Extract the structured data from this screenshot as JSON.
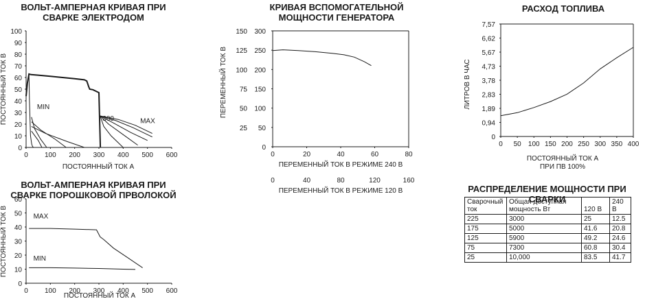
{
  "colors": {
    "ink": "#1a1a1a",
    "background": "#ffffff"
  },
  "chart_data": [
    {
      "type": "line",
      "title": "ВОЛЬТ-АМПЕРНАЯ КРИВАЯ ПРИ\nСВАРКЕ ЭЛЕКТРОДОМ",
      "xlabel": "ПОСТОЯННЫЙ ТОК А",
      "ylabel": "ПОСТОЯННЫЙ ТОК В",
      "xlim": [
        0,
        600
      ],
      "ylim": [
        0,
        100
      ],
      "xticks": [
        0,
        100,
        200,
        300,
        400,
        500,
        600
      ],
      "yticks": [
        0,
        10,
        20,
        30,
        40,
        50,
        60,
        70,
        80,
        90,
        100
      ],
      "grid": false,
      "annotations": [
        {
          "text": "MIN",
          "x": 45,
          "y": 33
        },
        {
          "text": "300",
          "x": 315,
          "y": 23
        },
        {
          "text": "MAX",
          "x": 470,
          "y": 21
        }
      ],
      "series": [
        {
          "x": [
            0,
            5,
            12,
            20,
            50,
            100,
            150,
            200,
            240,
            250,
            258,
            262,
            275,
            290,
            300,
            306
          ],
          "y": [
            44,
            55,
            63,
            62.5,
            62,
            61,
            60,
            59,
            58,
            57,
            52,
            50,
            49.5,
            48,
            47,
            0
          ]
        },
        {
          "x": [
            12,
            14,
            18,
            23,
            26,
            30
          ],
          "y": [
            63,
            40,
            10,
            3,
            1,
            0
          ]
        },
        {
          "x": [
            22,
            35,
            60,
            85
          ],
          "y": [
            26,
            16,
            7,
            0
          ]
        },
        {
          "x": [
            22,
            60,
            120,
            165
          ],
          "y": [
            22,
            15,
            7,
            0
          ]
        },
        {
          "x": [
            22,
            80,
            170,
            240
          ],
          "y": [
            18,
            12,
            5,
            0
          ]
        },
        {
          "x": [
            22,
            50,
            65
          ],
          "y": [
            14,
            6,
            0
          ]
        },
        {
          "x": [
            305,
            320,
            350,
            400
          ],
          "y": [
            27,
            18,
            10,
            0
          ]
        },
        {
          "x": [
            305,
            340,
            400,
            460
          ],
          "y": [
            27,
            20,
            11,
            2
          ]
        },
        {
          "x": [
            305,
            360,
            430,
            500
          ],
          "y": [
            27,
            21,
            13,
            6
          ]
        },
        {
          "x": [
            305,
            370,
            440,
            520
          ],
          "y": [
            27,
            23,
            17,
            9
          ]
        },
        {
          "x": [
            306,
            380,
            450,
            520
          ],
          "y": [
            27,
            24,
            19,
            12
          ]
        }
      ]
    },
    {
      "type": "line",
      "title": "ВОЛЬТ-АМПЕРНАЯ КРИВАЯ ПРИ\nСВАРКЕ ПОРОШКОВОЙ ПРВОЛОКОЙ",
      "xlabel": "ПОСТОЯННЫЙ ТОК А",
      "ylabel": "ПОСТОЯННЫЙ ТОК В",
      "xlim": [
        0,
        600
      ],
      "ylim": [
        0,
        60
      ],
      "xticks": [
        0,
        100,
        200,
        300,
        400,
        500,
        600
      ],
      "yticks": [
        0,
        10,
        20,
        30,
        40,
        50,
        60
      ],
      "grid": false,
      "annotations": [
        {
          "text": "MAX",
          "x": 30,
          "y": 46
        },
        {
          "text": "MIN",
          "x": 30,
          "y": 16
        }
      ],
      "series": [
        {
          "name": "MAX",
          "x": [
            12,
            100,
            200,
            290,
            305,
            320,
            360,
            420,
            480
          ],
          "y": [
            39,
            39,
            38.5,
            38,
            33,
            31,
            25,
            18,
            11
          ]
        },
        {
          "name": "MIN",
          "x": [
            12,
            100,
            200,
            300,
            400,
            450
          ],
          "y": [
            11,
            11,
            10.8,
            10.5,
            10,
            9.8
          ]
        }
      ]
    },
    {
      "type": "line",
      "title": "КРИВАЯ ВСПОМОГАТЕЛЬНОЙ\nМОЩНОСТИ ГЕНЕРАТОРА",
      "ylabel": "ПЕРЕМЕННЫЙ ТОК В",
      "xlabel": "ПЕРЕМЕННЫЙ ТОК В РЕЖИМЕ 240 В",
      "x2label": "ПЕРЕМЕННЫЙ ТОК В РЕЖИМЕ 120 В",
      "xlim": [
        0,
        80
      ],
      "ylim": [
        0,
        300
      ],
      "xticks": [
        0,
        20,
        40,
        60,
        80
      ],
      "x2ticks": [
        0,
        40,
        80,
        120,
        160
      ],
      "yticks": [
        0,
        50,
        100,
        150,
        200,
        250,
        300
      ],
      "yticks_left": [
        "",
        "25",
        "50",
        "75",
        "100",
        "125",
        "150"
      ],
      "grid": false,
      "series": [
        {
          "x": [
            0,
            6,
            15,
            25,
            35,
            42,
            48,
            54,
            58
          ],
          "y": [
            249,
            251,
            249,
            246,
            242,
            238,
            232,
            220,
            210
          ]
        }
      ]
    },
    {
      "type": "line",
      "title": "РАСХОД ТОПЛИВА",
      "ylabel": "ЛИТРОВ В ЧАС",
      "xlabel": "ПОСТОЯННЫЙ ТОК А",
      "xlabel2": "ПРИ ПВ 100%",
      "xlim": [
        0,
        400
      ],
      "ylim": [
        0,
        7.57
      ],
      "xticks": [
        0,
        50,
        100,
        150,
        200,
        250,
        300,
        350,
        400
      ],
      "yticks": [
        "0",
        "0,94",
        "1,89",
        "2,83",
        "3,78",
        "4,73",
        "5,67",
        "6,62",
        "7,57"
      ],
      "grid": false,
      "series": [
        {
          "x": [
            0,
            50,
            100,
            150,
            200,
            250,
            300,
            350,
            400
          ],
          "y": [
            1.4,
            1.6,
            1.95,
            2.35,
            2.85,
            3.6,
            4.55,
            5.3,
            6.0
          ]
        }
      ]
    }
  ],
  "table": {
    "title": "РАСПРЕДЕЛЕНИЕ МОЩНОСТИ ПРИ СВАРКИ",
    "headers": [
      "Сварочный ток",
      "Общая доступная мощность Вт",
      "120 В",
      "240 В"
    ],
    "rows": [
      [
        "225",
        "3000",
        "25",
        "12.5"
      ],
      [
        "175",
        "5000",
        "41.6",
        "20.8"
      ],
      [
        "125",
        "5900",
        "49.2",
        "24.6"
      ],
      [
        "75",
        "7300",
        "60.8",
        "30.4"
      ],
      [
        "25",
        "10,000",
        "83.5",
        "41.7"
      ]
    ]
  }
}
